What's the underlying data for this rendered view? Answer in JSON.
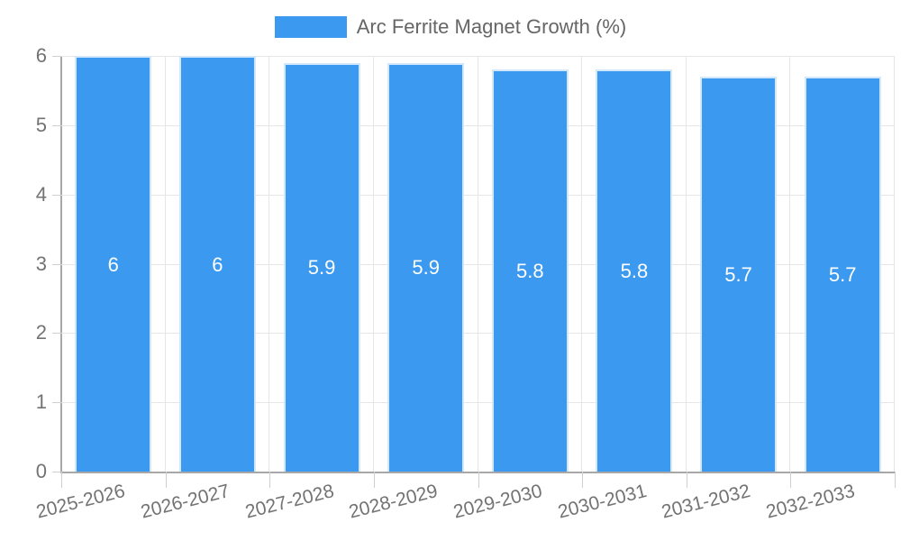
{
  "legend": {
    "label": "Arc Ferrite Magnet Growth (%)",
    "swatch_color": "#3b99ef"
  },
  "chart_data": {
    "type": "bar",
    "title": "Arc Ferrite Magnet Growth (%)",
    "categories": [
      "2025-2026",
      "2026-2027",
      "2027-2028",
      "2028-2029",
      "2029-2030",
      "2030-2031",
      "2031-2032",
      "2032-2033"
    ],
    "values": [
      6,
      6,
      5.9,
      5.9,
      5.8,
      5.8,
      5.7,
      5.7
    ],
    "bar_labels": [
      "6",
      "6",
      "5.9",
      "5.9",
      "5.8",
      "5.8",
      "5.7",
      "5.7"
    ],
    "xlabel": "",
    "ylabel": "",
    "ylim": [
      0,
      6
    ],
    "yticks": [
      0,
      1,
      2,
      3,
      4,
      5,
      6
    ],
    "grid": true,
    "legend_position": "top",
    "bar_color": "#3b99ef",
    "bar_border_color": "#d2e7fa",
    "value_label_color": "#ffffff"
  },
  "colors": {
    "background": "#ffffff",
    "axis_line": "#a8a8a8",
    "gridline": "#e6e6e6",
    "tick_mark": "#cfcfcf",
    "tick_label": "#737373",
    "legend_text": "#666666"
  }
}
